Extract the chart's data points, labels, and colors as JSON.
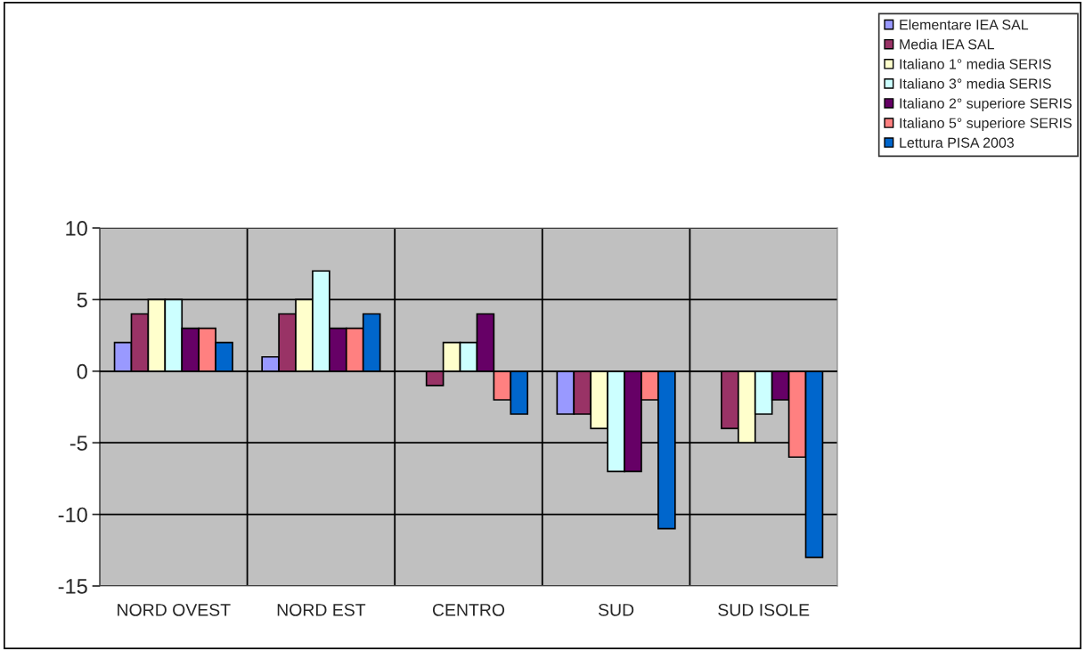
{
  "chart_data": {
    "type": "bar",
    "categories": [
      "NORD OVEST",
      "NORD EST",
      "CENTRO",
      "SUD",
      "SUD ISOLE"
    ],
    "series": [
      {
        "name": "Elementare IEA SAL",
        "color": "#9999ff",
        "values": [
          2,
          1,
          null,
          -3,
          null
        ]
      },
      {
        "name": "Media IEA SAL",
        "color": "#993366",
        "values": [
          4,
          4,
          -1,
          -3,
          -4
        ]
      },
      {
        "name": "Italiano 1° media SERIS",
        "color": "#ffffcc",
        "values": [
          5,
          5,
          2,
          -4,
          -5
        ]
      },
      {
        "name": "Italiano 3° media SERIS",
        "color": "#ccffff",
        "values": [
          5,
          7,
          2,
          -7,
          -3
        ]
      },
      {
        "name": "Italiano 2° superiore SERIS",
        "color": "#660066",
        "values": [
          3,
          3,
          4,
          -7,
          -2
        ]
      },
      {
        "name": "Italiano 5° superiore SERIS",
        "color": "#ff8080",
        "values": [
          3,
          3,
          -2,
          -2,
          -6
        ]
      },
      {
        "name": "Lettura PISA 2003",
        "color": "#0066cc",
        "values": [
          2,
          4,
          -3,
          -11,
          -13
        ]
      }
    ],
    "ylim": [
      -15,
      10
    ],
    "yticks": [
      -15,
      -10,
      -5,
      0,
      5,
      10
    ],
    "grid": true,
    "legend": "top right"
  }
}
